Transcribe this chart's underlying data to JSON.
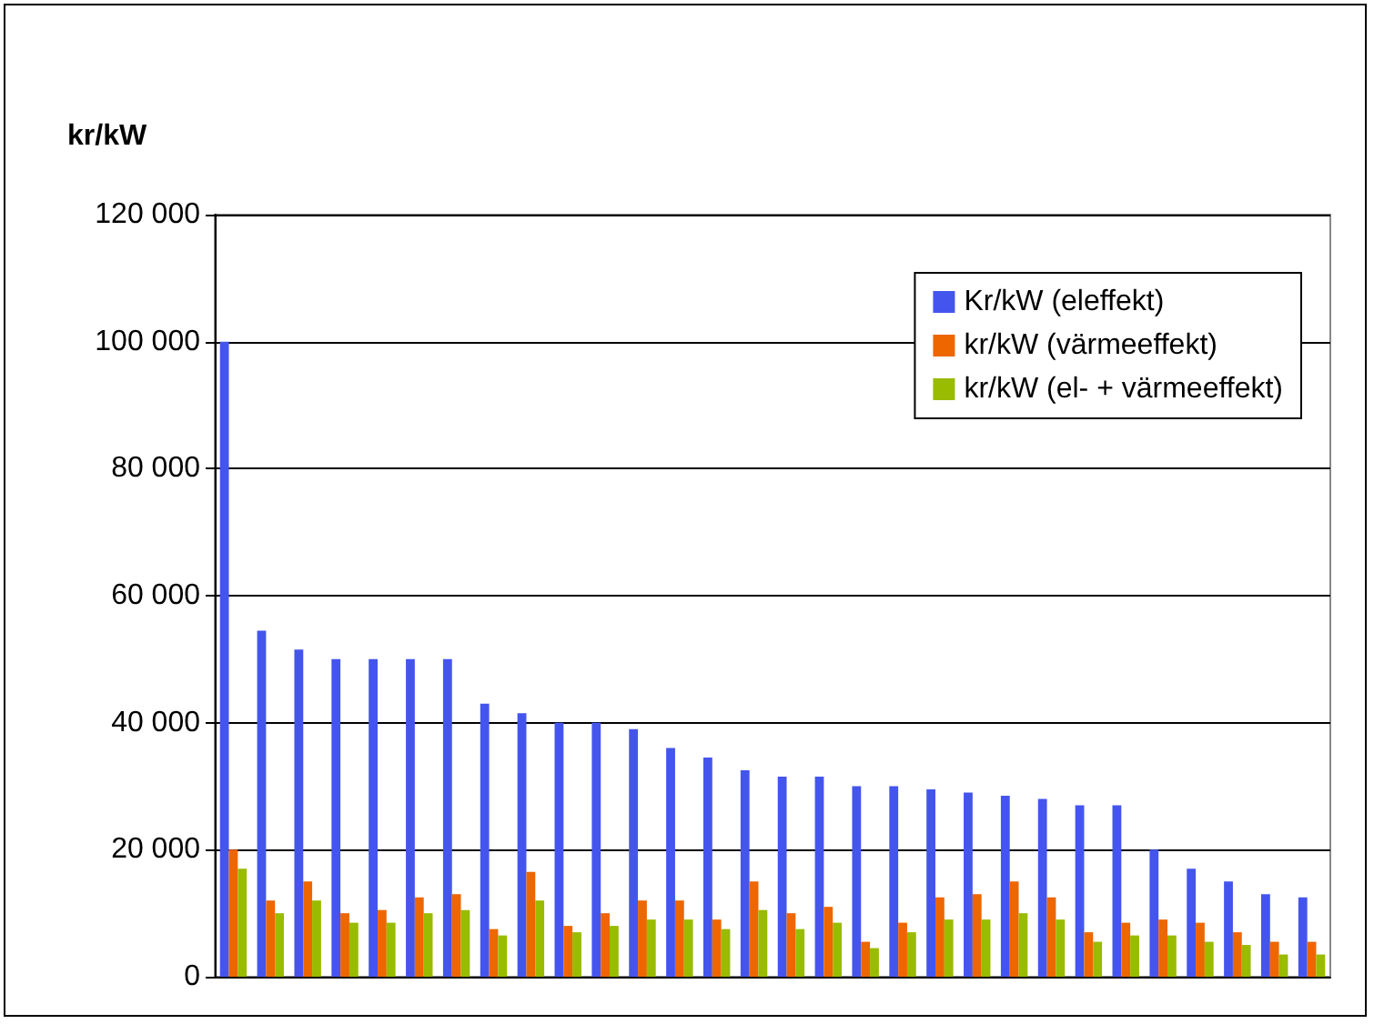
{
  "chart_data": {
    "type": "bar",
    "ylabel": "kr/kW",
    "categories": [
      null,
      null,
      null,
      null,
      null,
      null,
      null,
      null,
      null,
      null,
      null,
      null,
      null,
      null,
      null,
      null,
      null,
      null,
      null,
      null,
      null,
      null,
      null,
      null,
      null,
      null,
      null,
      null,
      null,
      null
    ],
    "series": [
      {
        "name": "Kr/kW (eleffekt)",
        "color": "#4455ee",
        "values": [
          100000,
          54500,
          51500,
          50000,
          50000,
          50000,
          50000,
          43000,
          41500,
          40000,
          40000,
          39000,
          36000,
          34500,
          32500,
          31500,
          31500,
          30000,
          30000,
          29500,
          29000,
          28500,
          28000,
          27000,
          27000,
          20000,
          17000,
          15000,
          13000,
          12500
        ]
      },
      {
        "name": "kr/kW (värmeeffekt)",
        "color": "#ee6600",
        "values": [
          20000,
          12000,
          15000,
          10000,
          10500,
          12500,
          13000,
          7500,
          16500,
          8000,
          10000,
          12000,
          12000,
          9000,
          15000,
          10000,
          11000,
          5500,
          8500,
          12500,
          13000,
          15000,
          12500,
          7000,
          8500,
          9000,
          8500,
          7000,
          5500,
          5500
        ]
      },
      {
        "name": "kr/kW (el- + värmeeffekt)",
        "color": "#99bb00",
        "values": [
          17000,
          10000,
          12000,
          8500,
          8500,
          10000,
          10500,
          6500,
          12000,
          7000,
          8000,
          9000,
          9000,
          7500,
          10500,
          7500,
          8500,
          4500,
          7000,
          9000,
          9000,
          10000,
          9000,
          5500,
          6500,
          6500,
          5500,
          5000,
          3500,
          3500
        ]
      }
    ],
    "ylim": [
      0,
      120000
    ],
    "yticks": [
      0,
      20000,
      40000,
      60000,
      80000,
      100000,
      120000
    ],
    "grid": "y",
    "legend": "top right"
  }
}
